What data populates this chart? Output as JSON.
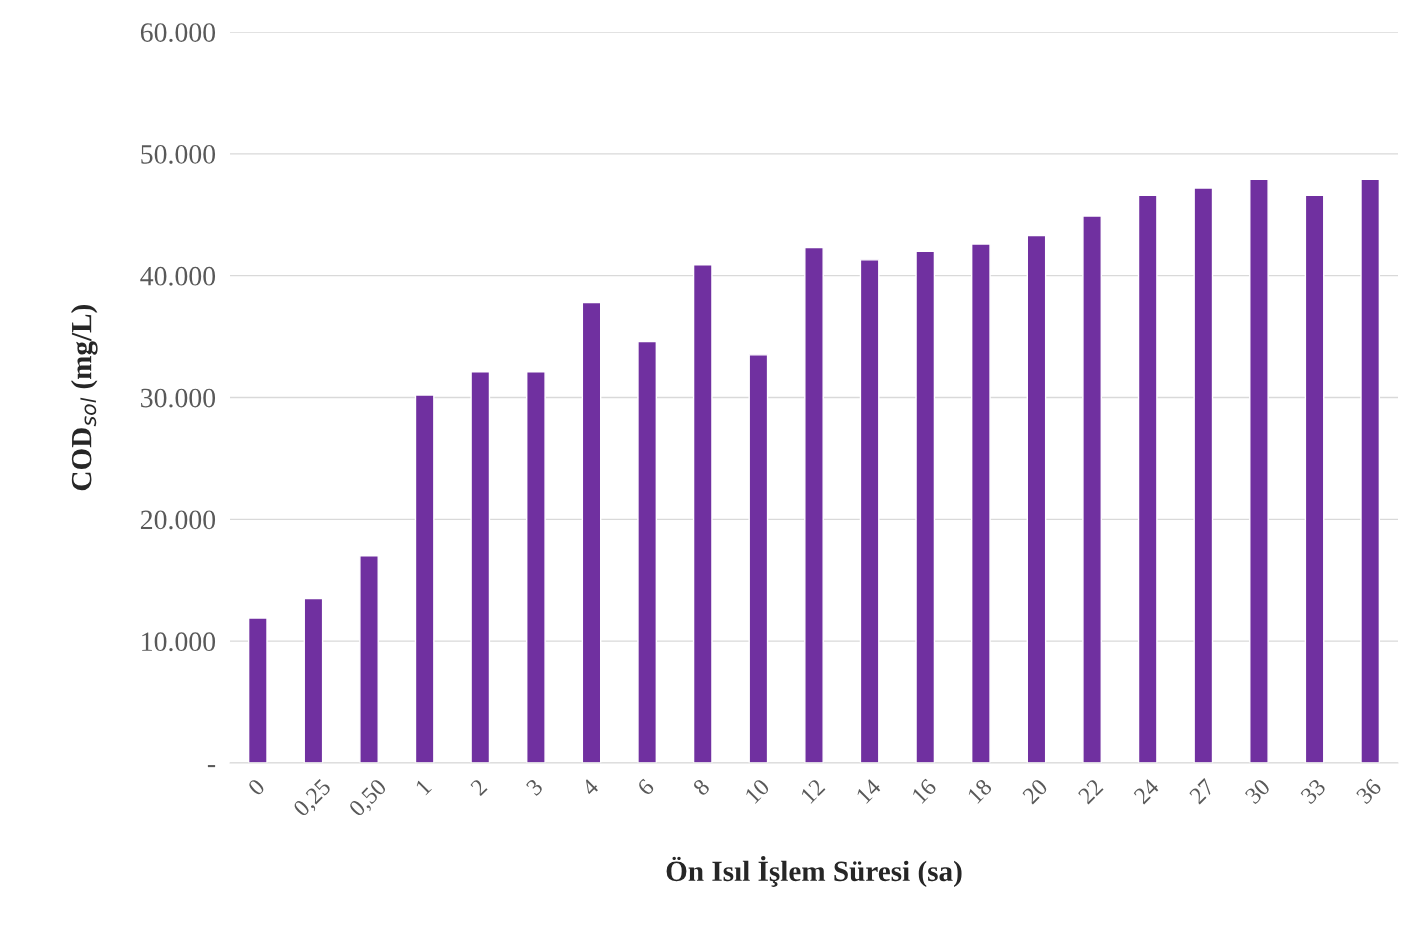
{
  "chart_data": {
    "type": "bar",
    "xlabel": "Ön Isıl İşlem Süresi (sa)",
    "ylabel": "COD$_{sol}$ (mg/L)",
    "categories": [
      "0",
      "0,25",
      "0,50",
      "1",
      "2",
      "3",
      "4",
      "6",
      "8",
      "10",
      "12",
      "14",
      "16",
      "18",
      "20",
      "22",
      "24",
      "27",
      "30",
      "33",
      "36"
    ],
    "values": [
      11900,
      13500,
      17000,
      30200,
      32100,
      32100,
      37800,
      34600,
      40900,
      33500,
      42300,
      41300,
      42000,
      42600,
      43300,
      44900,
      46600,
      47200,
      47900,
      46600,
      47900
    ],
    "color": "#7030a0",
    "ylim": [
      0,
      60000
    ],
    "yticks": [
      {
        "value": 0,
        "label": "-"
      },
      {
        "value": 10000,
        "label": "10.000"
      },
      {
        "value": 20000,
        "label": "20.000"
      },
      {
        "value": 30000,
        "label": "30.000"
      },
      {
        "value": 40000,
        "label": "40.000"
      },
      {
        "value": 50000,
        "label": "50.000"
      },
      {
        "value": 60000,
        "label": "60.000"
      }
    ],
    "grid": "y",
    "legend": false
  }
}
